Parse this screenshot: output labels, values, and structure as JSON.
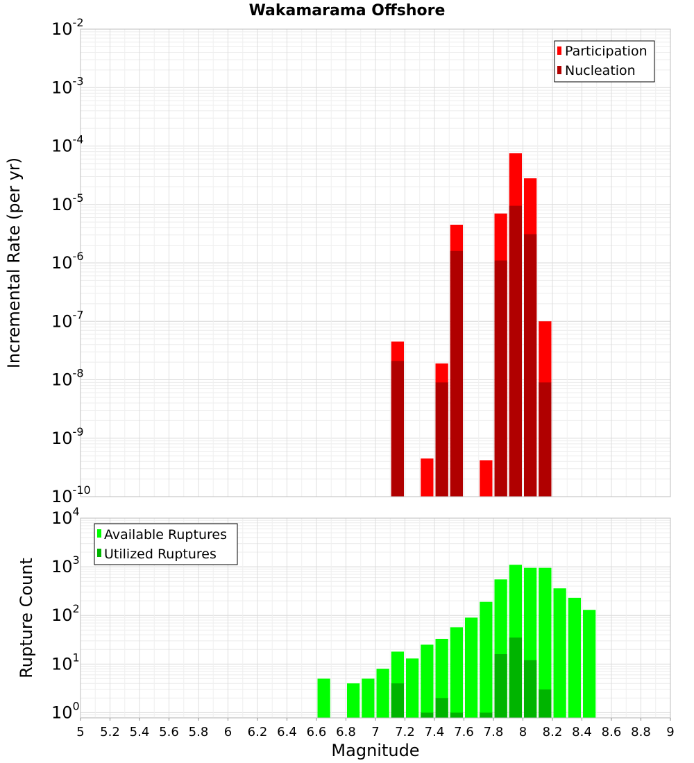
{
  "chart_data": [
    {
      "type": "bar",
      "title": "Wakamarama Offshore",
      "xlabel": "",
      "ylabel": "Incremental Rate (per yr)",
      "yscale": "log",
      "xlim": [
        5,
        9
      ],
      "ylim": [
        1e-10,
        0.01
      ],
      "y_ticks": [
        {
          "base": "10",
          "exp": "-10"
        },
        {
          "base": "10",
          "exp": "-9"
        },
        {
          "base": "10",
          "exp": "-8"
        },
        {
          "base": "10",
          "exp": "-7"
        },
        {
          "base": "10",
          "exp": "-6"
        },
        {
          "base": "10",
          "exp": "-5"
        },
        {
          "base": "10",
          "exp": "-4"
        },
        {
          "base": "10",
          "exp": "-3"
        },
        {
          "base": "10",
          "exp": "-2"
        }
      ],
      "grid": true,
      "legend_position": "top-right",
      "bin_width": 0.1,
      "series": [
        {
          "name": "Participation",
          "color": "#ff0000",
          "x": [
            7.15,
            7.35,
            7.45,
            7.55,
            7.75,
            7.85,
            7.95,
            8.05,
            8.15
          ],
          "values": [
            4.5e-08,
            4.5e-10,
            1.9e-08,
            4.5e-06,
            4.2e-10,
            7e-06,
            7.5e-05,
            2.8e-05,
            1e-07
          ]
        },
        {
          "name": "Nucleation",
          "color": "#b00000",
          "x": [
            7.15,
            7.45,
            7.55,
            7.85,
            7.95,
            8.05,
            8.15
          ],
          "values": [
            2.1e-08,
            9e-09,
            1.6e-06,
            1.1e-06,
            9.5e-06,
            3.1e-06,
            9e-09
          ]
        }
      ]
    },
    {
      "type": "bar",
      "title": "",
      "xlabel": "Magnitude",
      "ylabel": "Rupture Count",
      "yscale": "log",
      "xlim": [
        5,
        9
      ],
      "ylim": [
        0.78,
        10000
      ],
      "y_ticks": [
        {
          "base": "10",
          "exp": "0"
        },
        {
          "base": "10",
          "exp": "1"
        },
        {
          "base": "10",
          "exp": "2"
        },
        {
          "base": "10",
          "exp": "3"
        },
        {
          "base": "10",
          "exp": "4"
        }
      ],
      "x_ticks": [
        "5",
        "5.2",
        "5.4",
        "5.6",
        "5.8",
        "6",
        "6.2",
        "6.4",
        "6.6",
        "6.8",
        "7",
        "7.2",
        "7.4",
        "7.6",
        "7.8",
        "8",
        "8.2",
        "8.4",
        "8.6",
        "8.8",
        "9"
      ],
      "grid": true,
      "legend_position": "top-left",
      "bin_width": 0.1,
      "series": [
        {
          "name": "Available Ruptures",
          "color": "#00ff00",
          "x": [
            6.65,
            6.85,
            6.95,
            7.05,
            7.15,
            7.25,
            7.35,
            7.45,
            7.55,
            7.65,
            7.75,
            7.85,
            7.95,
            8.05,
            8.15,
            8.25,
            8.35,
            8.45
          ],
          "values": [
            5,
            4,
            5,
            8,
            18,
            13,
            25,
            33,
            57,
            90,
            190,
            550,
            1100,
            950,
            950,
            360,
            230,
            130
          ]
        },
        {
          "name": "Utilized Ruptures",
          "color": "#00b400",
          "x": [
            7.15,
            7.35,
            7.45,
            7.55,
            7.75,
            7.85,
            7.95,
            8.05,
            8.15
          ],
          "values": [
            4,
            1,
            2,
            1,
            1,
            16,
            35,
            12,
            3
          ]
        }
      ]
    }
  ]
}
